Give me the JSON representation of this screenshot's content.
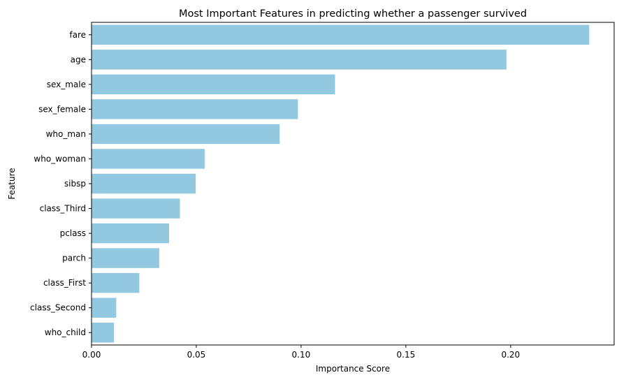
{
  "chart_data": {
    "type": "bar",
    "orientation": "horizontal",
    "title": "Most Important Features in predicting whether a passenger survived",
    "xlabel": "Importance Score",
    "ylabel": "Feature",
    "categories": [
      "fare",
      "age",
      "sex_male",
      "sex_female",
      "who_man",
      "who_woman",
      "sibsp",
      "class_Third",
      "pclass",
      "parch",
      "class_First",
      "class_Second",
      "who_child"
    ],
    "values": [
      0.2375,
      0.198,
      0.1162,
      0.0985,
      0.0898,
      0.054,
      0.0497,
      0.0422,
      0.037,
      0.0323,
      0.0228,
      0.0118,
      0.0107
    ],
    "xlim": [
      0,
      0.2494
    ],
    "xticks": [
      0.0,
      0.05,
      0.1,
      0.15,
      0.2
    ],
    "xtick_labels": [
      "0.00",
      "0.05",
      "0.10",
      "0.15",
      "0.20"
    ],
    "bar_color": "#92c9e0",
    "grid": false,
    "legend": "none"
  }
}
